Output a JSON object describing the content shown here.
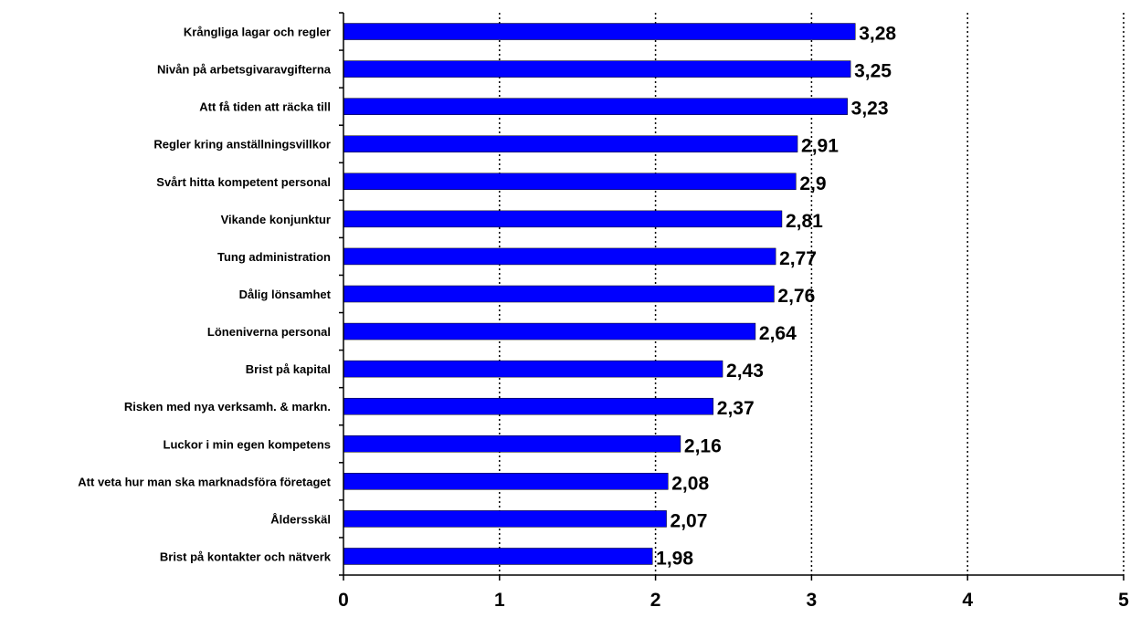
{
  "chart_data": {
    "type": "bar",
    "orientation": "horizontal",
    "categories": [
      "Krångliga lagar och regler",
      "Nivån på arbetsgivaravgifterna",
      "Att få tiden att räcka till",
      "Regler kring anställningsvillkor",
      "Svårt hitta kompetent personal",
      "Vikande konjunktur",
      "Tung administration",
      "Dålig lönsamhet",
      "Löneniverna personal",
      "Brist på kapital",
      "Risken med nya verksamh. & markn.",
      "Luckor i min egen kompetens",
      "Att veta hur man ska marknadsföra företaget",
      "Åldersskäl",
      "Brist på kontakter och nätverk"
    ],
    "values": [
      3.28,
      3.25,
      3.23,
      2.91,
      2.9,
      2.81,
      2.77,
      2.76,
      2.64,
      2.43,
      2.37,
      2.16,
      2.08,
      2.07,
      1.98
    ],
    "value_labels": [
      "3,28",
      "3,25",
      "3,23",
      "2,91",
      "2,9",
      "2,81",
      "2,77",
      "2,76",
      "2,64",
      "2,43",
      "2,37",
      "2,16",
      "2,08",
      "2,07",
      "1,98"
    ],
    "xlim": [
      0,
      5
    ],
    "x_ticks": [
      "0",
      "1",
      "2",
      "3",
      "4",
      "5"
    ],
    "grid": "vertical dotted",
    "legend": "none",
    "bar_color": "#0000ff"
  }
}
